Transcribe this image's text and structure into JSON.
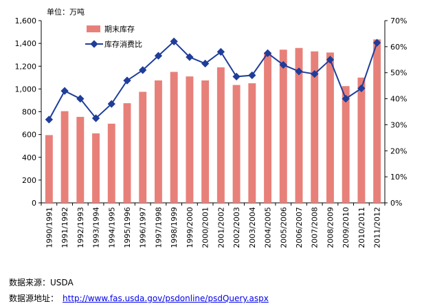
{
  "chart_data": {
    "type": "bar+line",
    "unit_label": "单位：万吨",
    "categories": [
      "1990/1991",
      "1991/1992",
      "1992/1993",
      "1993/1994",
      "1994/1995",
      "1995/1996",
      "1996/1997",
      "1997/1998",
      "1998/1999",
      "1999/2000",
      "2000/2001",
      "2001/2002",
      "2002/2003",
      "2003/2004",
      "2004/2005",
      "2005/2006",
      "2006/2007",
      "2007/2008",
      "2008/2009",
      "2009/2010",
      "2010/2011",
      "2011/2012"
    ],
    "series": [
      {
        "name": "期末库存",
        "type": "bar",
        "axis": "left",
        "color": "#e8807a",
        "values": [
          595,
          805,
          755,
          610,
          695,
          875,
          975,
          1075,
          1150,
          1110,
          1075,
          1190,
          1035,
          1050,
          1320,
          1345,
          1360,
          1330,
          1320,
          1025,
          1100,
          1435
        ]
      },
      {
        "name": "库存消费比",
        "type": "line",
        "axis": "right",
        "color": "#1f3d99",
        "values": [
          32,
          43,
          40,
          32.5,
          38,
          47,
          51,
          56.5,
          62,
          56,
          53.5,
          58,
          48.5,
          49,
          57.5,
          53,
          50.5,
          49.5,
          55,
          40,
          44,
          61.5
        ]
      }
    ],
    "left_axis": {
      "min": 0,
      "max": 1600,
      "ticks": [
        "0",
        "200",
        "400",
        "600",
        "800",
        "1,000",
        "1,200",
        "1,400",
        "1,600"
      ]
    },
    "right_axis": {
      "min": 0,
      "max": 70,
      "ticks": [
        "0%",
        "10%",
        "20%",
        "30%",
        "40%",
        "50%",
        "60%",
        "70%"
      ]
    },
    "legend_position": "top-left",
    "grid": false
  },
  "footer": {
    "source_label": "数据来源：",
    "source_value": "USDA",
    "url_label": "数据源地址：",
    "url": "http://www.fas.usda.gov/psdonline/psdQuery.aspx"
  }
}
